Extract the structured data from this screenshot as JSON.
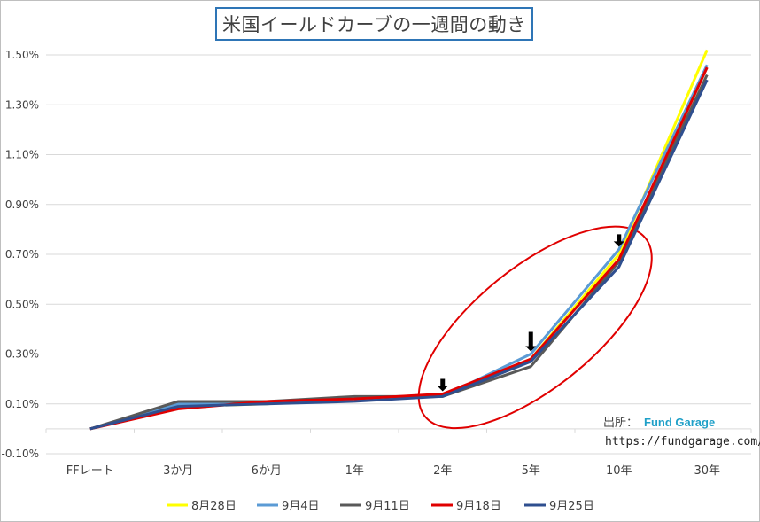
{
  "chart_data": {
    "type": "line",
    "title": "米国イールドカーブの一週間の動き",
    "categories": [
      "FFレート",
      "3か月",
      "6か月",
      "1年",
      "2年",
      "5年",
      "10年",
      "30年"
    ],
    "y_ticks": [
      "1.50%",
      "1.30%",
      "1.10%",
      "0.90%",
      "0.70%",
      "0.50%",
      "0.30%",
      "0.10%",
      "-0.10%"
    ],
    "ylim": [
      -0.1,
      1.5
    ],
    "grid": "horizontal",
    "legend_position": "bottom",
    "series": [
      {
        "name": "8月28日",
        "color": "#ffff00",
        "values": [
          0.0,
          0.09,
          0.1,
          0.12,
          0.13,
          0.28,
          0.7,
          1.52
        ]
      },
      {
        "name": "9月4日",
        "color": "#5b9bd5",
        "values": [
          0.0,
          0.1,
          0.1,
          0.12,
          0.13,
          0.3,
          0.72,
          1.46
        ]
      },
      {
        "name": "9月11日",
        "color": "#595959",
        "values": [
          0.0,
          0.11,
          0.11,
          0.13,
          0.13,
          0.25,
          0.67,
          1.42
        ]
      },
      {
        "name": "9月18日",
        "color": "#e00000",
        "values": [
          0.0,
          0.08,
          0.11,
          0.12,
          0.14,
          0.28,
          0.68,
          1.45
        ]
      },
      {
        "name": "9月25日",
        "color": "#2f4f8f",
        "values": [
          0.0,
          0.09,
          0.1,
          0.11,
          0.13,
          0.27,
          0.65,
          1.4
        ]
      }
    ],
    "annotation": {
      "source_label": "出所：",
      "source_name": "Fund Garage",
      "source_url": "https://fundgarage.com/",
      "highlight": "red ellipse around 2年 to 10年",
      "arrows": "down arrows at 2年, 5年, 10年"
    }
  }
}
